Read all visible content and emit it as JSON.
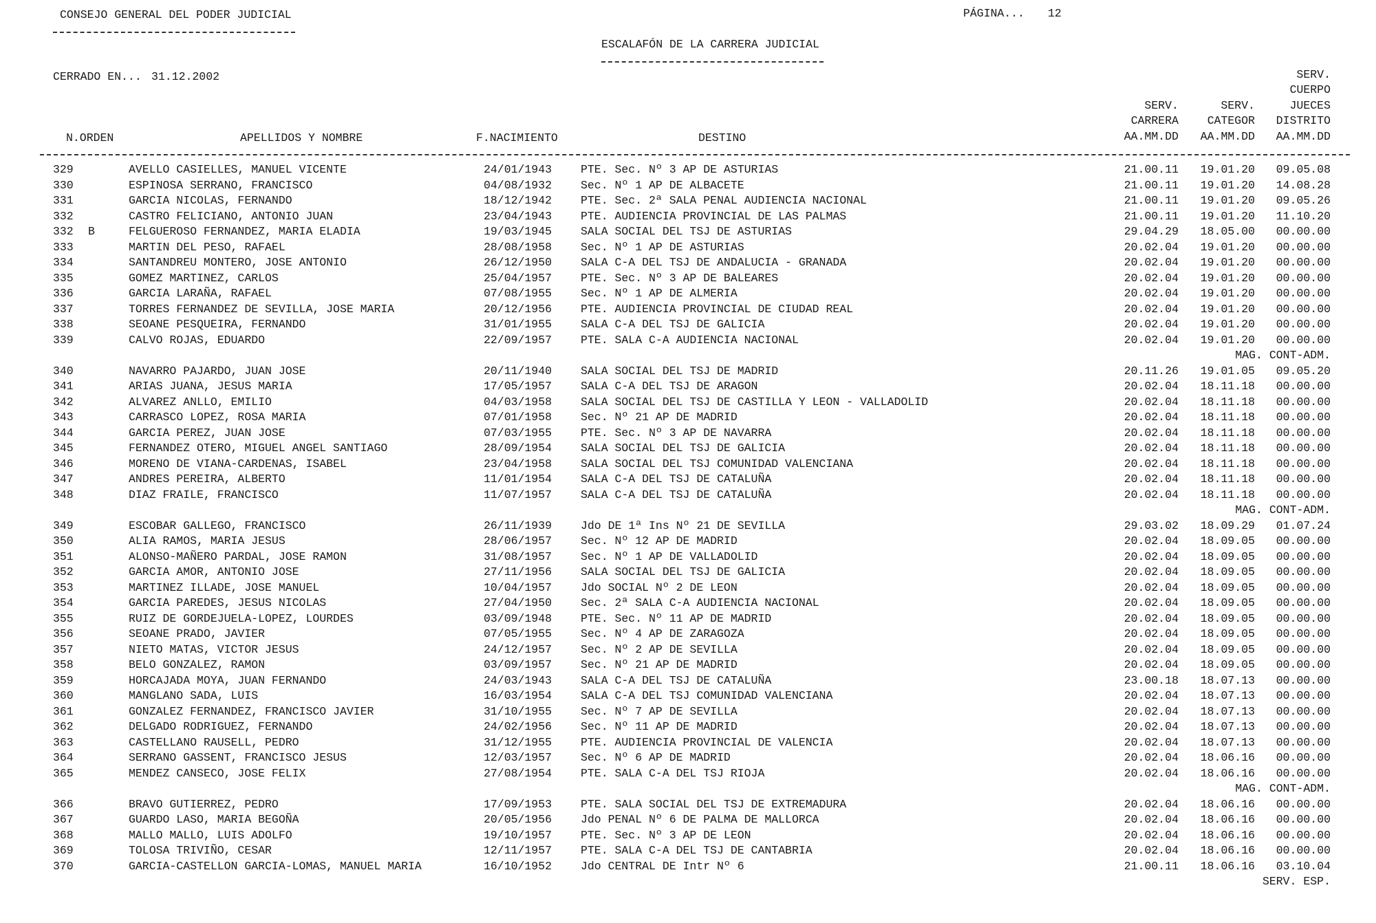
{
  "header": {
    "org": "CONSEJO GENERAL DEL PODER JUDICIAL",
    "page_label": "PÁGINA...",
    "page_number": "12",
    "title": "ESCALAFÓN DE LA CARRERA JUDICIAL",
    "closed_label": "CERRADO EN...",
    "closed_date": "31.12.2002"
  },
  "columns": {
    "orden": "N.ORDEN",
    "nombre": "APELLIDOS Y NOMBRE",
    "nacimiento": "F.NACIMIENTO",
    "destino": "DESTINO",
    "carrera": [
      "SERV.",
      "CARRERA",
      "AA.MM.DD"
    ],
    "categor": [
      "SERV.",
      "CATEGOR",
      "AA.MM.DD"
    ],
    "distrito": [
      "SERV.",
      "CUERPO",
      "JUECES",
      "DISTRITO",
      "AA.MM.DD"
    ]
  },
  "rows": [
    {
      "n": "329",
      "s": "",
      "name": "AVELLO CASIELLES, MANUEL VICENTE",
      "birth": "24/01/1943",
      "destino": "PTE. Sec. Nº 3 AP DE ASTURIAS",
      "carrera": "21.00.11",
      "categor": "19.01.20",
      "distrito": "09.05.08"
    },
    {
      "n": "330",
      "s": "",
      "name": "ESPINOSA SERRANO, FRANCISCO",
      "birth": "04/08/1932",
      "destino": "Sec. Nº 1 AP DE ALBACETE",
      "carrera": "21.00.11",
      "categor": "19.01.20",
      "distrito": "14.08.28"
    },
    {
      "n": "331",
      "s": "",
      "name": "GARCIA NICOLAS, FERNANDO",
      "birth": "18/12/1942",
      "destino": "PTE. Sec. 2ª SALA PENAL AUDIENCIA NACIONAL",
      "carrera": "21.00.11",
      "categor": "19.01.20",
      "distrito": "09.05.26"
    },
    {
      "n": "332",
      "s": "",
      "name": "CASTRO FELICIANO, ANTONIO JUAN",
      "birth": "23/04/1943",
      "destino": "PTE. AUDIENCIA PROVINCIAL DE LAS PALMAS",
      "carrera": "21.00.11",
      "categor": "19.01.20",
      "distrito": "11.10.20"
    },
    {
      "n": "332",
      "s": "B",
      "name": "FELGUEROSO FERNANDEZ, MARIA ELADIA",
      "birth": "19/03/1945",
      "destino": "SALA SOCIAL DEL TSJ DE ASTURIAS",
      "carrera": "29.04.29",
      "categor": "18.05.00",
      "distrito": "00.00.00"
    },
    {
      "n": "333",
      "s": "",
      "name": "MARTIN DEL PESO, RAFAEL",
      "birth": "28/08/1958",
      "destino": "Sec. Nº 1 AP DE ASTURIAS",
      "carrera": "20.02.04",
      "categor": "19.01.20",
      "distrito": "00.00.00"
    },
    {
      "n": "334",
      "s": "",
      "name": "SANTANDREU MONTERO, JOSE ANTONIO",
      "birth": "26/12/1950",
      "destino": "SALA C-A DEL TSJ DE ANDALUCIA - GRANADA",
      "carrera": "20.02.04",
      "categor": "19.01.20",
      "distrito": "00.00.00"
    },
    {
      "n": "335",
      "s": "",
      "name": "GOMEZ MARTINEZ, CARLOS",
      "birth": "25/04/1957",
      "destino": "PTE. Sec. Nº 3 AP DE BALEARES",
      "carrera": "20.02.04",
      "categor": "19.01.20",
      "distrito": "00.00.00"
    },
    {
      "n": "336",
      "s": "",
      "name": "GARCIA LARAÑA, RAFAEL",
      "birth": "07/08/1955",
      "destino": "Sec. Nº 1 AP DE ALMERIA",
      "carrera": "20.02.04",
      "categor": "19.01.20",
      "distrito": "00.00.00"
    },
    {
      "n": "337",
      "s": "",
      "name": "TORRES FERNANDEZ DE SEVILLA, JOSE MARIA",
      "birth": "20/12/1956",
      "destino": "PTE. AUDIENCIA PROVINCIAL DE CIUDAD REAL",
      "carrera": "20.02.04",
      "categor": "19.01.20",
      "distrito": "00.00.00"
    },
    {
      "n": "338",
      "s": "",
      "name": "SEOANE PESQUEIRA, FERNANDO",
      "birth": "31/01/1955",
      "destino": "SALA C-A DEL TSJ DE GALICIA",
      "carrera": "20.02.04",
      "categor": "19.01.20",
      "distrito": "00.00.00"
    },
    {
      "n": "339",
      "s": "",
      "name": "CALVO ROJAS, EDUARDO",
      "birth": "22/09/1957",
      "destino": "PTE. SALA C-A AUDIENCIA NACIONAL",
      "carrera": "20.02.04",
      "categor": "19.01.20",
      "distrito": "00.00.00"
    },
    {
      "note": "MAG. CONT-ADM."
    },
    {
      "n": "340",
      "s": "",
      "name": "NAVARRO PAJARDO, JUAN JOSE",
      "birth": "20/11/1940",
      "destino": "SALA SOCIAL DEL TSJ DE MADRID",
      "carrera": "20.11.26",
      "categor": "19.01.05",
      "distrito": "09.05.20"
    },
    {
      "n": "341",
      "s": "",
      "name": "ARIAS JUANA, JESUS MARIA",
      "birth": "17/05/1957",
      "destino": "SALA C-A DEL TSJ DE ARAGON",
      "carrera": "20.02.04",
      "categor": "18.11.18",
      "distrito": "00.00.00"
    },
    {
      "n": "342",
      "s": "",
      "name": "ALVAREZ ANLLO, EMILIO",
      "birth": "04/03/1958",
      "destino": "SALA SOCIAL DEL TSJ DE CASTILLA Y LEON - VALLADOLID",
      "carrera": "20.02.04",
      "categor": "18.11.18",
      "distrito": "00.00.00"
    },
    {
      "n": "343",
      "s": "",
      "name": "CARRASCO LOPEZ, ROSA MARIA",
      "birth": "07/01/1958",
      "destino": "Sec. Nº 21 AP DE MADRID",
      "carrera": "20.02.04",
      "categor": "18.11.18",
      "distrito": "00.00.00"
    },
    {
      "n": "344",
      "s": "",
      "name": "GARCIA PEREZ, JUAN JOSE",
      "birth": "07/03/1955",
      "destino": "PTE. Sec. Nº 3 AP DE NAVARRA",
      "carrera": "20.02.04",
      "categor": "18.11.18",
      "distrito": "00.00.00"
    },
    {
      "n": "345",
      "s": "",
      "name": "FERNANDEZ OTERO, MIGUEL ANGEL SANTIAGO",
      "birth": "28/09/1954",
      "destino": "SALA SOCIAL DEL TSJ DE GALICIA",
      "carrera": "20.02.04",
      "categor": "18.11.18",
      "distrito": "00.00.00"
    },
    {
      "n": "346",
      "s": "",
      "name": "MORENO DE VIANA-CARDENAS, ISABEL",
      "birth": "23/04/1958",
      "destino": "SALA SOCIAL DEL TSJ COMUNIDAD VALENCIANA",
      "carrera": "20.02.04",
      "categor": "18.11.18",
      "distrito": "00.00.00"
    },
    {
      "n": "347",
      "s": "",
      "name": "ANDRES PEREIRA, ALBERTO",
      "birth": "11/01/1954",
      "destino": "SALA C-A DEL TSJ DE CATALUÑA",
      "carrera": "20.02.04",
      "categor": "18.11.18",
      "distrito": "00.00.00"
    },
    {
      "n": "348",
      "s": "",
      "name": "DIAZ FRAILE, FRANCISCO",
      "birth": "11/07/1957",
      "destino": "SALA C-A DEL TSJ DE CATALUÑA",
      "carrera": "20.02.04",
      "categor": "18.11.18",
      "distrito": "00.00.00"
    },
    {
      "note": "MAG. CONT-ADM."
    },
    {
      "n": "349",
      "s": "",
      "name": "ESCOBAR GALLEGO, FRANCISCO",
      "birth": "26/11/1939",
      "destino": "Jdo DE 1ª Ins Nº 21 DE SEVILLA",
      "carrera": "29.03.02",
      "categor": "18.09.29",
      "distrito": "01.07.24"
    },
    {
      "n": "350",
      "s": "",
      "name": "ALIA RAMOS, MARIA JESUS",
      "birth": "28/06/1957",
      "destino": "Sec. Nº 12 AP DE MADRID",
      "carrera": "20.02.04",
      "categor": "18.09.05",
      "distrito": "00.00.00"
    },
    {
      "n": "351",
      "s": "",
      "name": "ALONSO-MAÑERO PARDAL, JOSE RAMON",
      "birth": "31/08/1957",
      "destino": "Sec. Nº 1 AP DE VALLADOLID",
      "carrera": "20.02.04",
      "categor": "18.09.05",
      "distrito": "00.00.00"
    },
    {
      "n": "352",
      "s": "",
      "name": "GARCIA AMOR, ANTONIO JOSE",
      "birth": "27/11/1956",
      "destino": "SALA SOCIAL DEL TSJ DE GALICIA",
      "carrera": "20.02.04",
      "categor": "18.09.05",
      "distrito": "00.00.00"
    },
    {
      "n": "353",
      "s": "",
      "name": "MARTINEZ ILLADE, JOSE MANUEL",
      "birth": "10/04/1957",
      "destino": "Jdo SOCIAL Nº 2 DE LEON",
      "carrera": "20.02.04",
      "categor": "18.09.05",
      "distrito": "00.00.00"
    },
    {
      "n": "354",
      "s": "",
      "name": "GARCIA PAREDES, JESUS NICOLAS",
      "birth": "27/04/1950",
      "destino": "Sec. 2ª SALA C-A AUDIENCIA NACIONAL",
      "carrera": "20.02.04",
      "categor": "18.09.05",
      "distrito": "00.00.00"
    },
    {
      "n": "355",
      "s": "",
      "name": "RUIZ DE GORDEJUELA-LOPEZ, LOURDES",
      "birth": "03/09/1948",
      "destino": "PTE. Sec. Nº 11 AP DE MADRID",
      "carrera": "20.02.04",
      "categor": "18.09.05",
      "distrito": "00.00.00"
    },
    {
      "n": "356",
      "s": "",
      "name": "SEOANE PRADO, JAVIER",
      "birth": "07/05/1955",
      "destino": "Sec. Nº 4 AP DE ZARAGOZA",
      "carrera": "20.02.04",
      "categor": "18.09.05",
      "distrito": "00.00.00"
    },
    {
      "n": "357",
      "s": "",
      "name": "NIETO MATAS, VICTOR JESUS",
      "birth": "24/12/1957",
      "destino": "Sec. Nº 2 AP DE SEVILLA",
      "carrera": "20.02.04",
      "categor": "18.09.05",
      "distrito": "00.00.00"
    },
    {
      "n": "358",
      "s": "",
      "name": "BELO GONZALEZ, RAMON",
      "birth": "03/09/1957",
      "destino": "Sec. Nº 21 AP DE MADRID",
      "carrera": "20.02.04",
      "categor": "18.09.05",
      "distrito": "00.00.00"
    },
    {
      "n": "359",
      "s": "",
      "name": "HORCAJADA MOYA, JUAN FERNANDO",
      "birth": "24/03/1943",
      "destino": "SALA C-A DEL TSJ DE CATALUÑA",
      "carrera": "23.00.18",
      "categor": "18.07.13",
      "distrito": "00.00.00"
    },
    {
      "n": "360",
      "s": "",
      "name": "MANGLANO SADA, LUIS",
      "birth": "16/03/1954",
      "destino": "SALA C-A DEL TSJ COMUNIDAD VALENCIANA",
      "carrera": "20.02.04",
      "categor": "18.07.13",
      "distrito": "00.00.00"
    },
    {
      "n": "361",
      "s": "",
      "name": "GONZALEZ FERNANDEZ, FRANCISCO JAVIER",
      "birth": "31/10/1955",
      "destino": "Sec. Nº 7 AP DE SEVILLA",
      "carrera": "20.02.04",
      "categor": "18.07.13",
      "distrito": "00.00.00"
    },
    {
      "n": "362",
      "s": "",
      "name": "DELGADO RODRIGUEZ, FERNANDO",
      "birth": "24/02/1956",
      "destino": "Sec. Nº 11 AP DE MADRID",
      "carrera": "20.02.04",
      "categor": "18.07.13",
      "distrito": "00.00.00"
    },
    {
      "n": "363",
      "s": "",
      "name": "CASTELLANO RAUSELL, PEDRO",
      "birth": "31/12/1955",
      "destino": "PTE. AUDIENCIA PROVINCIAL DE VALENCIA",
      "carrera": "20.02.04",
      "categor": "18.07.13",
      "distrito": "00.00.00"
    },
    {
      "n": "364",
      "s": "",
      "name": "SERRANO GASSENT, FRANCISCO JESUS",
      "birth": "12/03/1957",
      "destino": "Sec. Nº 6 AP DE MADRID",
      "carrera": "20.02.04",
      "categor": "18.06.16",
      "distrito": "00.00.00"
    },
    {
      "n": "365",
      "s": "",
      "name": "MENDEZ CANSECO, JOSE FELIX",
      "birth": "27/08/1954",
      "destino": "PTE. SALA C-A DEL TSJ RIOJA",
      "carrera": "20.02.04",
      "categor": "18.06.16",
      "distrito": "00.00.00"
    },
    {
      "note": "MAG. CONT-ADM."
    },
    {
      "n": "366",
      "s": "",
      "name": "BRAVO GUTIERREZ, PEDRO",
      "birth": "17/09/1953",
      "destino": "PTE. SALA SOCIAL DEL TSJ DE EXTREMADURA",
      "carrera": "20.02.04",
      "categor": "18.06.16",
      "distrito": "00.00.00"
    },
    {
      "n": "367",
      "s": "",
      "name": "GUARDO LASO, MARIA BEGOÑA",
      "birth": "20/05/1956",
      "destino": "Jdo PENAL Nº 6 DE PALMA DE MALLORCA",
      "carrera": "20.02.04",
      "categor": "18.06.16",
      "distrito": "00.00.00"
    },
    {
      "n": "368",
      "s": "",
      "name": "MALLO MALLO, LUIS ADOLFO",
      "birth": "19/10/1957",
      "destino": "PTE. Sec. Nº 3 AP DE LEON",
      "carrera": "20.02.04",
      "categor": "18.06.16",
      "distrito": "00.00.00"
    },
    {
      "n": "369",
      "s": "",
      "name": "TOLOSA TRIVIÑO, CESAR",
      "birth": "12/11/1957",
      "destino": "PTE. SALA C-A DEL TSJ DE CANTABRIA",
      "carrera": "20.02.04",
      "categor": "18.06.16",
      "distrito": "00.00.00"
    },
    {
      "n": "370",
      "s": "",
      "name": "GARCIA-CASTELLON GARCIA-LOMAS, MANUEL MARIA",
      "birth": "16/10/1952",
      "destino": "Jdo CENTRAL DE Intr Nº 6",
      "carrera": "21.00.11",
      "categor": "18.06.16",
      "distrito": "03.10.04"
    },
    {
      "note": "SERV. ESP."
    }
  ]
}
